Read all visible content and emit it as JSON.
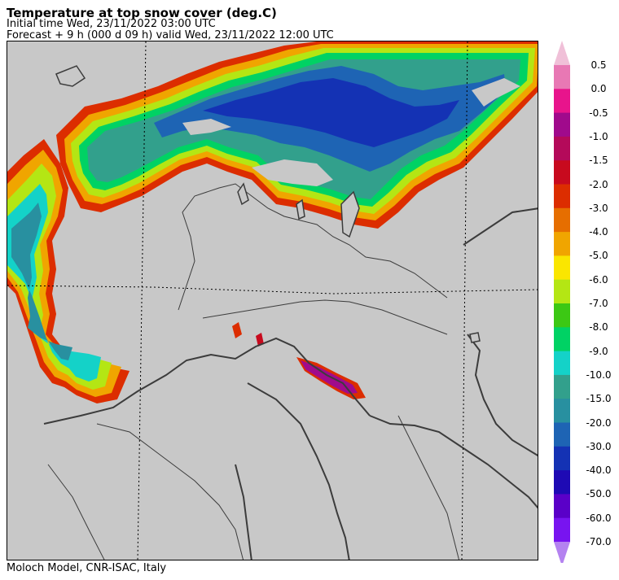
{
  "header": {
    "title": "Temperature at top snow cover (deg.C)",
    "initial_time": "Initial time  Wed, 23/11/2022  03:00 UTC",
    "forecast": "Forecast  +   9 h  (000 d 09 h)  valid Wed, 23/11/2022 12:00 UTC"
  },
  "footer": {
    "credit": "Moloch Model, CNR-ISAC, Italy"
  },
  "map": {
    "background_color": "#c8c8c8",
    "border_color": "#3c3c3c"
  },
  "colorbar": {
    "max_arrow_color": "#f0c0d8",
    "min_arrow_color": "#b482f0",
    "levels": [
      {
        "label": "0.5",
        "color": "#e878b4"
      },
      {
        "label": "0.0",
        "color": "#e8148c"
      },
      {
        "label": "-0.5",
        "color": "#a00a8c"
      },
      {
        "label": "-1.0",
        "color": "#b40a5a"
      },
      {
        "label": "-1.5",
        "color": "#c80a1e"
      },
      {
        "label": "-2.0",
        "color": "#dc2d00"
      },
      {
        "label": "-3.0",
        "color": "#e66e00"
      },
      {
        "label": "-4.0",
        "color": "#f0a500"
      },
      {
        "label": "-5.0",
        "color": "#fae600"
      },
      {
        "label": "-6.0",
        "color": "#b4e614"
      },
      {
        "label": "-7.0",
        "color": "#3cc814"
      },
      {
        "label": "-8.0",
        "color": "#00d264"
      },
      {
        "label": "-9.0",
        "color": "#14d2c8"
      },
      {
        "label": "-10.0",
        "color": "#32a08c"
      },
      {
        "label": "-15.0",
        "color": "#2890a0"
      },
      {
        "label": "-20.0",
        "color": "#1e64b4"
      },
      {
        "label": "-30.0",
        "color": "#1432b4"
      },
      {
        "label": "-40.0",
        "color": "#1e0ab4"
      },
      {
        "label": "-50.0",
        "color": "#5a00c8"
      },
      {
        "label": "-60.0",
        "color": "#7814f0"
      },
      {
        "label": "-70.0",
        "color": ""
      }
    ]
  }
}
